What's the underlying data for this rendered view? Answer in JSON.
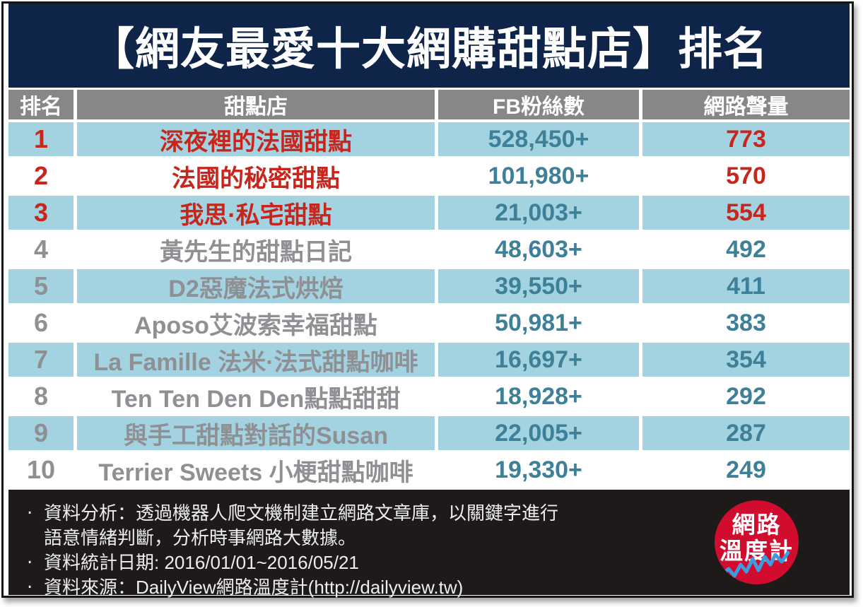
{
  "title": "【網友最愛十大網購甜點店】排名",
  "table": {
    "headers": [
      "排名",
      "甜點店",
      "FB粉絲數",
      "網路聲量"
    ],
    "rows": [
      {
        "rank": "1",
        "shop": "深夜裡的法國甜點",
        "fans": "528,450+",
        "volume": "773",
        "highlighted": true
      },
      {
        "rank": "2",
        "shop": "法國的秘密甜點",
        "fans": "101,980+",
        "volume": "570",
        "highlighted": true
      },
      {
        "rank": "3",
        "shop": "我思·私宅甜點",
        "fans": "21,003+",
        "volume": "554",
        "highlighted": true
      },
      {
        "rank": "4",
        "shop": "黃先生的甜點日記",
        "fans": "48,603+",
        "volume": "492",
        "highlighted": false
      },
      {
        "rank": "5",
        "shop": "D2惡魔法式烘焙",
        "fans": "39,550+",
        "volume": "411",
        "highlighted": false
      },
      {
        "rank": "6",
        "shop": "Aposo艾波索幸福甜點",
        "fans": "50,981+",
        "volume": "383",
        "highlighted": false
      },
      {
        "rank": "7",
        "shop": "La Famille 法米·法式甜點咖啡",
        "fans": "16,697+",
        "volume": "354",
        "highlighted": false
      },
      {
        "rank": "8",
        "shop": "Ten Ten Den Den點點甜甜",
        "fans": "18,928+",
        "volume": "292",
        "highlighted": false
      },
      {
        "rank": "9",
        "shop": "與手工甜點對話的Susan",
        "fans": "22,005+",
        "volume": "287",
        "highlighted": false
      },
      {
        "rank": "10",
        "shop": "Terrier Sweets 小梗甜點咖啡",
        "fans": "19,330+",
        "volume": "249",
        "highlighted": false
      }
    ]
  },
  "footer": {
    "lines": [
      {
        "bullet": "‧",
        "text": "資料分析：透過機器人爬文機制建立網路文章庫，以關鍵字進行"
      },
      {
        "bullet": "",
        "text": "語意情緒判斷，分析時事網路大數據。"
      },
      {
        "bullet": "‧",
        "text": "資料統計日期: 2016/01/01~2016/05/21"
      },
      {
        "bullet": "‧",
        "text": "資料來源：DailyView網路溫度計(http://dailyview.tw)"
      }
    ],
    "logo": {
      "line1": "網路",
      "line2": "溫度計"
    }
  },
  "colors": {
    "navy": "#0e2449",
    "header_gray": "#878787",
    "row_blue": "#a3d2e0",
    "accent_red": "#c8251c",
    "teal": "#3f8099",
    "muted_gray": "#8f9093",
    "footer_bg": "#1d1a19",
    "footer_text": "#eeeeee",
    "logo_red": "#d20c2e",
    "logo_wave_blue": "#3f9be0"
  },
  "chart_data": {
    "type": "table",
    "title": "【網友最愛十大網購甜點店】排名",
    "columns": [
      "排名",
      "甜點店",
      "FB粉絲數",
      "網路聲量"
    ],
    "rows": [
      [
        1,
        "深夜裡的法國甜點",
        "528,450+",
        773
      ],
      [
        2,
        "法國的秘密甜點",
        "101,980+",
        570
      ],
      [
        3,
        "我思·私宅甜點",
        "21,003+",
        554
      ],
      [
        4,
        "黃先生的甜點日記",
        "48,603+",
        492
      ],
      [
        5,
        "D2惡魔法式烘焙",
        "39,550+",
        411
      ],
      [
        6,
        "Aposo艾波索幸福甜點",
        "50,981+",
        383
      ],
      [
        7,
        "La Famille 法米·法式甜點咖啡",
        "16,697+",
        354
      ],
      [
        8,
        "Ten Ten Den Den點點甜甜",
        "18,928+",
        292
      ],
      [
        9,
        "與手工甜點對話的Susan",
        "22,005+",
        287
      ],
      [
        10,
        "Terrier Sweets 小梗甜點咖啡",
        "19,330+",
        249
      ]
    ],
    "notes": "rows ranked 1-3 highlighted in red; FB粉絲數 column teal; alternating light-blue row shading"
  }
}
